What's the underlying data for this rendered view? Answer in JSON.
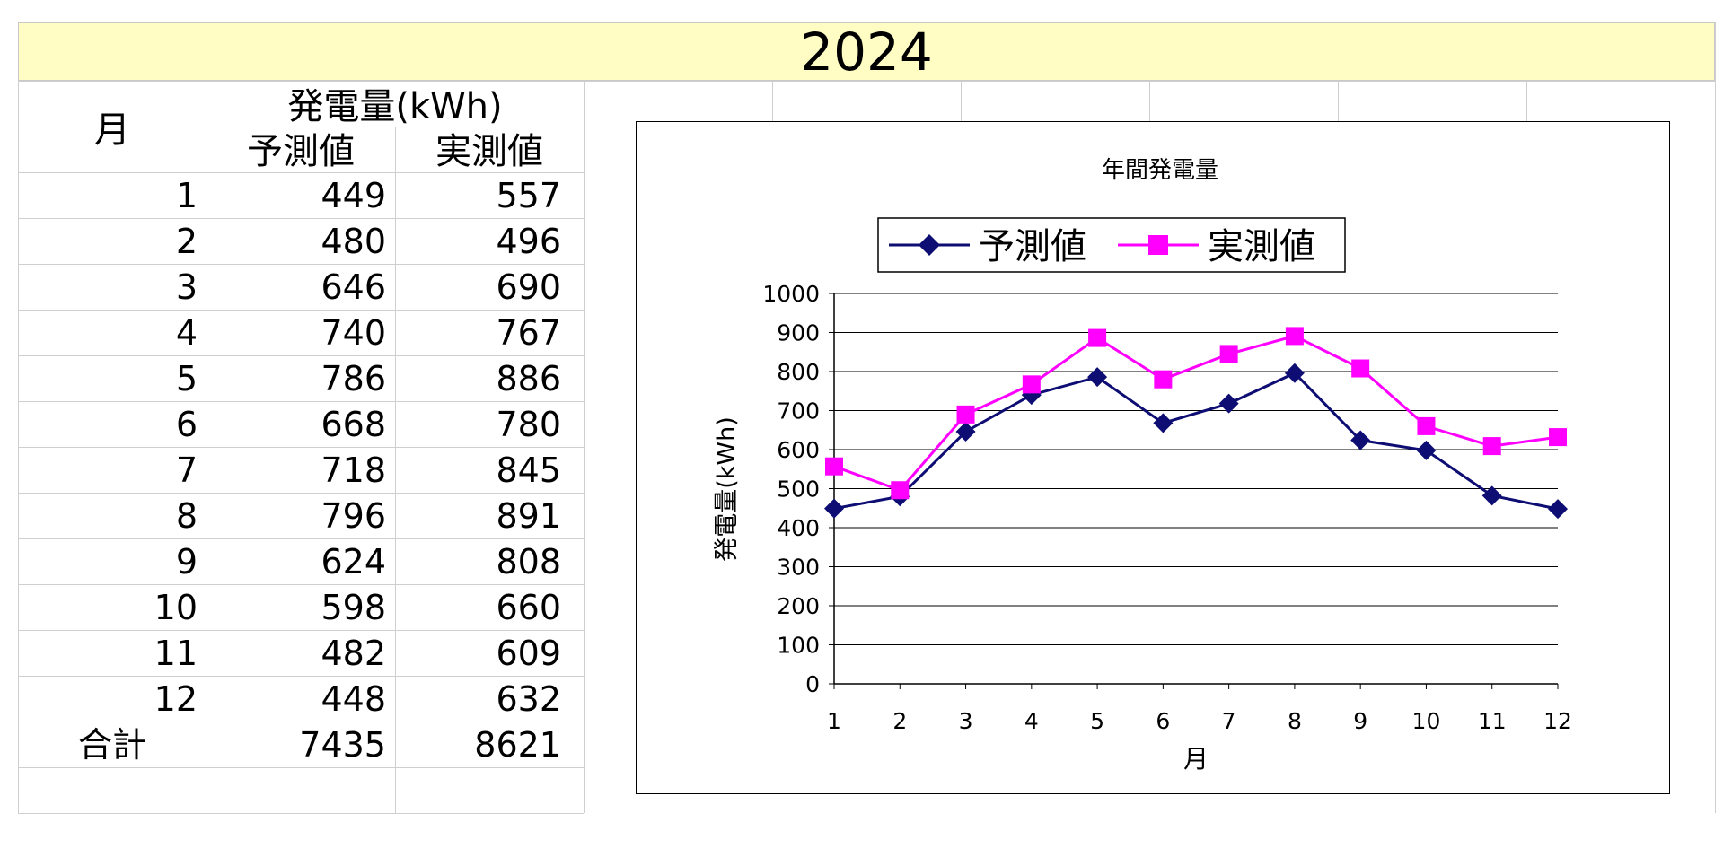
{
  "sheet": {
    "title": "2024",
    "header_month": "月",
    "header_generation": "発電量(kWh)",
    "header_predicted": "予測値",
    "header_actual": "実測値",
    "total_label": "合計",
    "total_predicted": "7435",
    "total_actual": "8621",
    "rows": [
      {
        "month": "1",
        "predicted": "449",
        "actual": "557"
      },
      {
        "month": "2",
        "predicted": "480",
        "actual": "496"
      },
      {
        "month": "3",
        "predicted": "646",
        "actual": "690"
      },
      {
        "month": "4",
        "predicted": "740",
        "actual": "767"
      },
      {
        "month": "5",
        "predicted": "786",
        "actual": "886"
      },
      {
        "month": "6",
        "predicted": "668",
        "actual": "780"
      },
      {
        "month": "7",
        "predicted": "718",
        "actual": "845"
      },
      {
        "month": "8",
        "predicted": "796",
        "actual": "891"
      },
      {
        "month": "9",
        "predicted": "624",
        "actual": "808"
      },
      {
        "month": "10",
        "predicted": "598",
        "actual": "660"
      },
      {
        "month": "11",
        "predicted": "482",
        "actual": "609"
      },
      {
        "month": "12",
        "predicted": "448",
        "actual": "632"
      }
    ]
  },
  "chart_data": {
    "type": "line",
    "title": "年間発電量",
    "xlabel": "月",
    "ylabel": "発電量(kWh)",
    "categories": [
      "1",
      "2",
      "3",
      "4",
      "5",
      "6",
      "7",
      "8",
      "9",
      "10",
      "11",
      "12"
    ],
    "ylim": [
      0,
      1000
    ],
    "yticks": [
      0,
      100,
      200,
      300,
      400,
      500,
      600,
      700,
      800,
      900,
      1000
    ],
    "grid": true,
    "legend_position": "top",
    "series": [
      {
        "name": "予測値",
        "color": "#0d0d73",
        "marker": "diamond",
        "values": [
          449,
          480,
          646,
          740,
          786,
          668,
          718,
          796,
          624,
          598,
          482,
          448
        ]
      },
      {
        "name": "実測値",
        "color": "#ff00ff",
        "marker": "square",
        "values": [
          557,
          496,
          690,
          767,
          886,
          780,
          845,
          891,
          808,
          660,
          609,
          632
        ]
      }
    ]
  }
}
